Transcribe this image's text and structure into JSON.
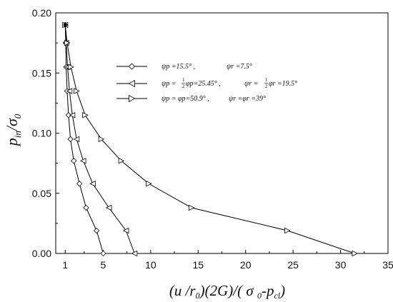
{
  "chart_data": {
    "type": "line",
    "xlim": [
      0,
      35
    ],
    "ylim": [
      0,
      0.2
    ],
    "xticks": [
      1,
      5,
      10,
      15,
      20,
      25,
      30,
      35
    ],
    "xtick_labels": [
      "1",
      "5",
      "10",
      "15",
      "20",
      "25",
      "30",
      "35"
    ],
    "yticks": [
      0,
      0.05,
      0.1,
      0.15,
      0.2
    ],
    "ytick_labels": [
      "0.00",
      "0.05",
      "0.10",
      "0.15",
      "0.20"
    ],
    "xlabel": "(u /r₀)(2G)/( σ ₀-p꜀ₗ)",
    "ylabel": "p_in/σ₀",
    "ylabel_main": "p",
    "ylabel_sub": "in",
    "ylabel_rest": "/σ",
    "ylabel_sub2": "0",
    "xlabel_parts": {
      "a": "(u /r",
      "a_sub": "0",
      "b": ")(2G)/( σ ",
      "b_sub": "0",
      "c": "-p",
      "c_sub": "cl",
      "d": ")"
    },
    "grid": false,
    "legend_position": "top-center",
    "series": [
      {
        "marker": "diamond",
        "legend": {
          "line1a": "ψp =15.5° ,",
          "line1b": "ψr =7.5°"
        },
        "x": [
          1.0,
          1.05,
          1.1,
          1.2,
          1.35,
          1.55,
          1.9,
          2.5,
          3.2,
          4.3,
          5.0
        ],
        "y": [
          0.19,
          0.175,
          0.155,
          0.135,
          0.115,
          0.095,
          0.077,
          0.058,
          0.038,
          0.019,
          0.0
        ]
      },
      {
        "marker": "triangle-left",
        "legend": {
          "line2a": "ψp = ",
          "half1": "1",
          "half2": "2",
          "line2b": "φp=25.45° ,",
          "line2c": "ψr = ",
          "line2d": "φr =19.5°"
        },
        "x": [
          1.0,
          1.1,
          1.25,
          1.45,
          1.75,
          2.2,
          2.9,
          3.9,
          5.6,
          7.4,
          8.3
        ],
        "y": [
          0.19,
          0.175,
          0.155,
          0.135,
          0.115,
          0.095,
          0.077,
          0.058,
          0.038,
          0.019,
          0.0
        ]
      },
      {
        "marker": "triangle-right",
        "legend": {
          "line3a": "ψp = φp=50.9° ,",
          "line3b": "ψr =φr =39°"
        },
        "x": [
          1.0,
          1.2,
          1.6,
          2.2,
          3.1,
          4.8,
          6.9,
          9.8,
          14.3,
          24.4,
          31.5
        ],
        "y": [
          0.19,
          0.175,
          0.155,
          0.135,
          0.115,
          0.095,
          0.077,
          0.058,
          0.038,
          0.019,
          0.0
        ]
      }
    ]
  }
}
